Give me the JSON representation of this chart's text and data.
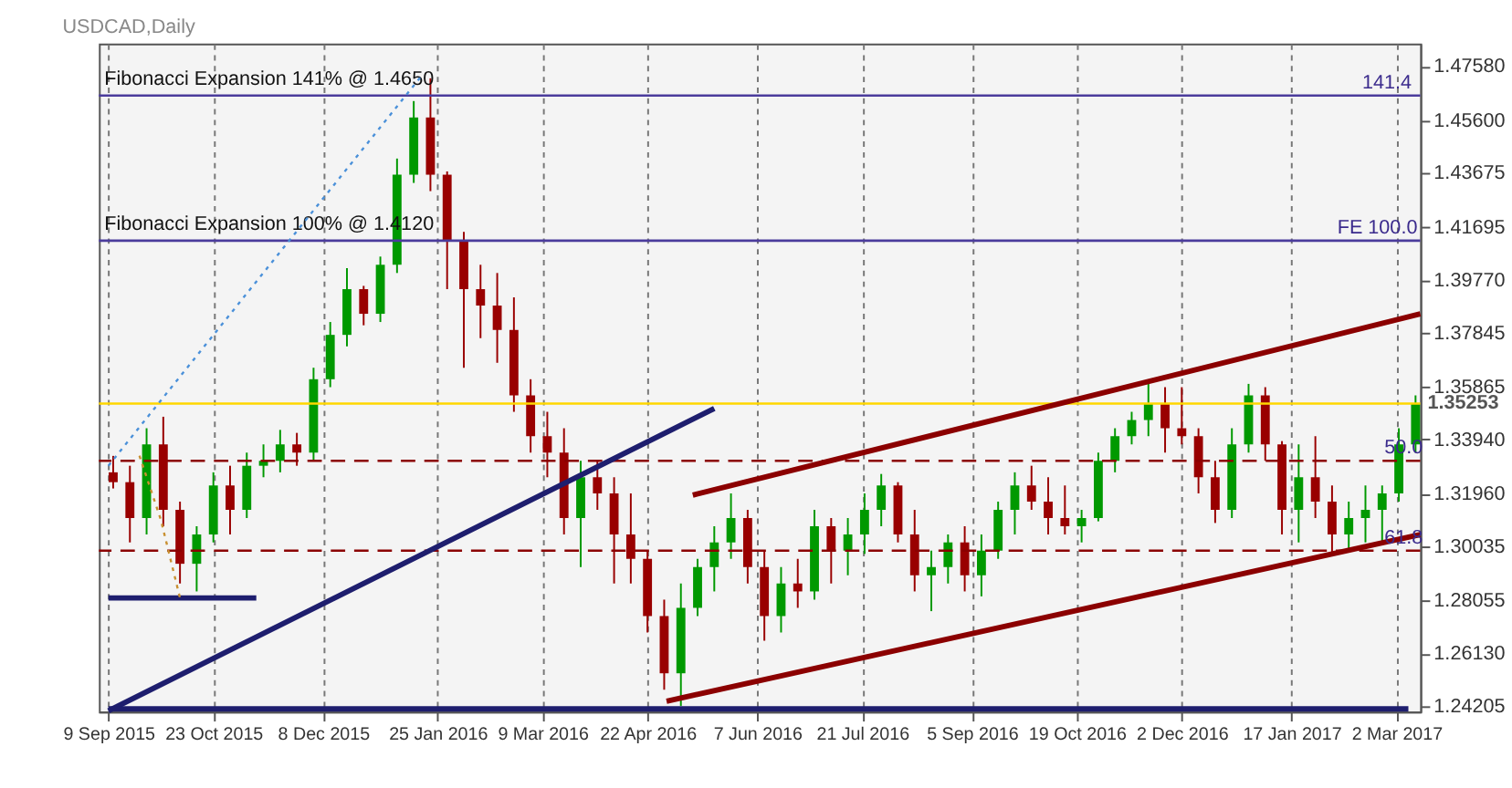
{
  "chart_data": {
    "type": "candlestick",
    "title": "USDCAD,Daily",
    "xlim": [
      "2015-09-05",
      "2017-03-12"
    ],
    "ylim": [
      1.24,
      1.484
    ],
    "xticks": [
      {
        "value": "2015-09-09",
        "label": "9 Sep 2015"
      },
      {
        "value": "2015-10-23",
        "label": "23 Oct 2015"
      },
      {
        "value": "2015-12-08",
        "label": "8 Dec 2015"
      },
      {
        "value": "2016-01-25",
        "label": "25 Jan 2016"
      },
      {
        "value": "2016-03-09",
        "label": "9 Mar 2016"
      },
      {
        "value": "2016-04-22",
        "label": "22 Apr 2016"
      },
      {
        "value": "2016-06-07",
        "label": "7 Jun 2016"
      },
      {
        "value": "2016-07-21",
        "label": "21 Jul 2016"
      },
      {
        "value": "2016-09-05",
        "label": "5 Sep 2016"
      },
      {
        "value": "2016-10-19",
        "label": "19 Oct 2016"
      },
      {
        "value": "2016-12-02",
        "label": "2 Dec 2016"
      },
      {
        "value": "2017-01-17",
        "label": "17 Jan 2017"
      },
      {
        "value": "2017-03-02",
        "label": "2 Mar 2017"
      }
    ],
    "yticks": [
      {
        "value": 1.4758,
        "label": "1.47580"
      },
      {
        "value": 1.456,
        "label": "1.45600"
      },
      {
        "value": 1.43675,
        "label": "1.43675"
      },
      {
        "value": 1.41695,
        "label": "1.41695"
      },
      {
        "value": 1.3977,
        "label": "1.39770"
      },
      {
        "value": 1.37845,
        "label": "1.37845"
      },
      {
        "value": 1.35865,
        "label": "1.35865"
      },
      {
        "value": 1.3394,
        "label": "1.33940"
      },
      {
        "value": 1.3196,
        "label": "1.31960"
      },
      {
        "value": 1.30035,
        "label": "1.30035"
      },
      {
        "value": 1.28055,
        "label": "1.28055"
      },
      {
        "value": 1.2613,
        "label": "1.26130"
      },
      {
        "value": 1.24205,
        "label": "1.24205"
      }
    ],
    "grid": "x",
    "x": [
      "2015-09-11",
      "2015-09-18",
      "2015-09-25",
      "2015-10-02",
      "2015-10-09",
      "2015-10-16",
      "2015-10-23",
      "2015-10-30",
      "2015-11-06",
      "2015-11-13",
      "2015-11-20",
      "2015-11-27",
      "2015-12-04",
      "2015-12-11",
      "2015-12-18",
      "2015-12-25",
      "2016-01-01",
      "2016-01-08",
      "2016-01-15",
      "2016-01-22",
      "2016-01-29",
      "2016-02-05",
      "2016-02-12",
      "2016-02-19",
      "2016-02-26",
      "2016-03-04",
      "2016-03-11",
      "2016-03-18",
      "2016-03-25",
      "2016-04-01",
      "2016-04-08",
      "2016-04-15",
      "2016-04-22",
      "2016-04-29",
      "2016-05-06",
      "2016-05-13",
      "2016-05-20",
      "2016-05-27",
      "2016-06-03",
      "2016-06-10",
      "2016-06-17",
      "2016-06-24",
      "2016-07-01",
      "2016-07-08",
      "2016-07-15",
      "2016-07-22",
      "2016-07-29",
      "2016-08-05",
      "2016-08-12",
      "2016-08-19",
      "2016-08-26",
      "2016-09-02",
      "2016-09-09",
      "2016-09-16",
      "2016-09-23",
      "2016-09-30",
      "2016-10-07",
      "2016-10-14",
      "2016-10-21",
      "2016-10-28",
      "2016-11-04",
      "2016-11-11",
      "2016-11-18",
      "2016-11-25",
      "2016-12-02",
      "2016-12-09",
      "2016-12-16",
      "2016-12-23",
      "2016-12-30",
      "2017-01-06",
      "2017-01-13",
      "2017-01-20",
      "2017-01-27",
      "2017-02-03",
      "2017-02-10",
      "2017-02-17",
      "2017-02-24",
      "2017-03-03",
      "2017-03-10"
    ],
    "ohlc": [
      [
        1.3274,
        1.3334,
        1.3215,
        1.3238
      ],
      [
        1.3238,
        1.3298,
        1.3018,
        1.3107
      ],
      [
        1.3107,
        1.3435,
        1.3047,
        1.3376
      ],
      [
        1.3376,
        1.3477,
        1.3077,
        1.3137
      ],
      [
        1.3137,
        1.3167,
        1.2868,
        1.294
      ],
      [
        1.294,
        1.3077,
        1.2839,
        1.3047
      ],
      [
        1.3047,
        1.3274,
        1.3018,
        1.3226
      ],
      [
        1.3226,
        1.3298,
        1.3047,
        1.3137
      ],
      [
        1.3137,
        1.3346,
        1.3107,
        1.3298
      ],
      [
        1.3298,
        1.3376,
        1.3256,
        1.3316
      ],
      [
        1.3316,
        1.3429,
        1.3274,
        1.3376
      ],
      [
        1.3376,
        1.3418,
        1.3298,
        1.3346
      ],
      [
        1.3346,
        1.3656,
        1.3316,
        1.3614
      ],
      [
        1.3614,
        1.3823,
        1.3585,
        1.3776
      ],
      [
        1.3776,
        1.402,
        1.3734,
        1.3943
      ],
      [
        1.3943,
        1.3955,
        1.3811,
        1.3853
      ],
      [
        1.3853,
        1.4062,
        1.3823,
        1.4032
      ],
      [
        1.4032,
        1.442,
        1.4002,
        1.4361
      ],
      [
        1.4361,
        1.463,
        1.4331,
        1.457
      ],
      [
        1.457,
        1.4713,
        1.4301,
        1.4361
      ],
      [
        1.4361,
        1.4373,
        1.3943,
        1.4122
      ],
      [
        1.4122,
        1.4152,
        1.3656,
        1.3943
      ],
      [
        1.3943,
        1.4032,
        1.3764,
        1.3883
      ],
      [
        1.3883,
        1.4002,
        1.3674,
        1.3794
      ],
      [
        1.3794,
        1.3913,
        1.3495,
        1.3555
      ],
      [
        1.3555,
        1.3614,
        1.3346,
        1.3406
      ],
      [
        1.3406,
        1.3495,
        1.3256,
        1.3346
      ],
      [
        1.3346,
        1.3435,
        1.3047,
        1.3107
      ],
      [
        1.3107,
        1.3316,
        1.2928,
        1.3256
      ],
      [
        1.3256,
        1.3316,
        1.3137,
        1.3197
      ],
      [
        1.3197,
        1.3256,
        1.2868,
        1.3047
      ],
      [
        1.3047,
        1.3197,
        1.2868,
        1.2958
      ],
      [
        1.2958,
        1.2988,
        1.2689,
        1.2749
      ],
      [
        1.2749,
        1.2809,
        1.248,
        1.254
      ],
      [
        1.254,
        1.2868,
        1.2421,
        1.2779
      ],
      [
        1.2779,
        1.2958,
        1.2749,
        1.2928
      ],
      [
        1.2928,
        1.3077,
        1.2839,
        1.3018
      ],
      [
        1.3018,
        1.3197,
        1.2958,
        1.3107
      ],
      [
        1.3107,
        1.3137,
        1.2868,
        1.2928
      ],
      [
        1.2928,
        1.2988,
        1.2659,
        1.2749
      ],
      [
        1.2749,
        1.2928,
        1.2689,
        1.2868
      ],
      [
        1.2868,
        1.2958,
        1.2779,
        1.2839
      ],
      [
        1.2839,
        1.3137,
        1.2809,
        1.3077
      ],
      [
        1.3077,
        1.3107,
        1.2868,
        1.2988
      ],
      [
        1.2988,
        1.3107,
        1.2898,
        1.3047
      ],
      [
        1.3047,
        1.3197,
        1.2976,
        1.3137
      ],
      [
        1.3137,
        1.3268,
        1.3077,
        1.3226
      ],
      [
        1.3226,
        1.3238,
        1.3018,
        1.3047
      ],
      [
        1.3047,
        1.3137,
        1.2839,
        1.2898
      ],
      [
        1.2898,
        1.2988,
        1.2767,
        1.2928
      ],
      [
        1.2928,
        1.3047,
        1.2868,
        1.3018
      ],
      [
        1.3018,
        1.3077,
        1.2839,
        1.2898
      ],
      [
        1.2898,
        1.3047,
        1.2821,
        1.2988
      ],
      [
        1.2988,
        1.3167,
        1.2958,
        1.3137
      ],
      [
        1.3137,
        1.3274,
        1.3047,
        1.3226
      ],
      [
        1.3226,
        1.3298,
        1.3137,
        1.3167
      ],
      [
        1.3167,
        1.3256,
        1.3047,
        1.3107
      ],
      [
        1.3107,
        1.3226,
        1.3047,
        1.3077
      ],
      [
        1.3077,
        1.3137,
        1.3018,
        1.3107
      ],
      [
        1.3107,
        1.3346,
        1.3095,
        1.3316
      ],
      [
        1.3316,
        1.3435,
        1.3274,
        1.3406
      ],
      [
        1.3406,
        1.3495,
        1.3376,
        1.3465
      ],
      [
        1.3465,
        1.3603,
        1.3406,
        1.3525
      ],
      [
        1.3525,
        1.3585,
        1.3346,
        1.3435
      ],
      [
        1.3435,
        1.3585,
        1.3376,
        1.3406
      ],
      [
        1.3406,
        1.3435,
        1.3197,
        1.3256
      ],
      [
        1.3256,
        1.3316,
        1.3089,
        1.3137
      ],
      [
        1.3137,
        1.3435,
        1.3107,
        1.3376
      ],
      [
        1.3376,
        1.3597,
        1.3346,
        1.3555
      ],
      [
        1.3555,
        1.3585,
        1.3316,
        1.3376
      ],
      [
        1.3376,
        1.3388,
        1.3047,
        1.3137
      ],
      [
        1.3137,
        1.3376,
        1.3018,
        1.3256
      ],
      [
        1.3256,
        1.3406,
        1.3107,
        1.3167
      ],
      [
        1.3167,
        1.3226,
        1.2976,
        1.3047
      ],
      [
        1.3047,
        1.3167,
        1.2988,
        1.3107
      ],
      [
        1.3107,
        1.3226,
        1.3018,
        1.3137
      ],
      [
        1.3137,
        1.3226,
        1.3018,
        1.3197
      ],
      [
        1.3197,
        1.3435,
        1.3167,
        1.3376
      ],
      [
        1.3376,
        1.3555,
        1.3346,
        1.3525
      ]
    ],
    "colors": [
      "#990000",
      "#990000",
      "#009900",
      "#990000",
      "#990000",
      "#009900",
      "#009900",
      "#990000",
      "#009900",
      "#009900",
      "#009900",
      "#990000",
      "#009900",
      "#009900",
      "#009900",
      "#990000",
      "#009900",
      "#009900",
      "#009900",
      "#990000",
      "#990000",
      "#990000",
      "#990000",
      "#990000",
      "#990000",
      "#990000",
      "#990000",
      "#990000",
      "#009900",
      "#990000",
      "#990000",
      "#990000",
      "#990000",
      "#990000",
      "#009900",
      "#009900",
      "#009900",
      "#009900",
      "#990000",
      "#990000",
      "#009900",
      "#990000",
      "#009900",
      "#990000",
      "#009900",
      "#009900",
      "#009900",
      "#990000",
      "#990000",
      "#009900",
      "#009900",
      "#990000",
      "#009900",
      "#009900",
      "#009900",
      "#990000",
      "#990000",
      "#990000",
      "#009900",
      "#009900",
      "#009900",
      "#009900",
      "#009900",
      "#990000",
      "#990000",
      "#990000",
      "#990000",
      "#009900",
      "#009900",
      "#990000",
      "#990000",
      "#009900",
      "#990000",
      "#990000",
      "#009900",
      "#009900",
      "#009900",
      "#009900",
      "#009900"
    ],
    "series": [
      {
        "type": "line",
        "color": "#1e1e6e",
        "line_style": "solid",
        "x": [
          "2015-09-09",
          "2016-05-20"
        ],
        "values": [
          1.2403,
          1.3507
        ]
      },
      {
        "type": "line",
        "color": "#1e1e6e",
        "line_style": "solid",
        "x": [
          "2015-09-09",
          "2015-11-10"
        ],
        "values": [
          1.2815,
          1.2815
        ]
      },
      {
        "type": "line",
        "color": "#1e1e6e",
        "line_style": "solid",
        "x": [
          "2015-09-09",
          "2017-03-07"
        ],
        "values": [
          1.241,
          1.241
        ]
      },
      {
        "type": "line",
        "color": "#8b0000",
        "line_style": "solid",
        "x": [
          "2016-05-11",
          "2017-03-12"
        ],
        "values": [
          1.3191,
          1.3853
        ]
      },
      {
        "type": "line",
        "color": "#8b0000",
        "line_style": "solid",
        "x": [
          "2016-04-30",
          "2017-03-12"
        ],
        "values": [
          1.2438,
          1.3047
        ]
      },
      {
        "type": "line",
        "color": "#4a90d9",
        "line_style": "dotted",
        "x": [
          "2015-09-09",
          "2016-01-18"
        ],
        "values": [
          1.3298,
          1.4719
        ]
      },
      {
        "type": "line",
        "color": "#c89030",
        "line_style": "dotted",
        "x": [
          "2015-09-22",
          "2015-10-01",
          "2015-10-09"
        ],
        "values": [
          1.3335,
          1.31,
          1.2815
        ]
      }
    ],
    "ref_lines": [
      {
        "axis": "y",
        "value": 1.465,
        "label": "Fibonacci Expansion 141% @ 1.4650",
        "color": "#4b3c9c"
      },
      {
        "axis": "y",
        "value": 1.412,
        "label": "Fibonacci Expansion 100% @ 1.4120",
        "color": "#4b3c9c"
      },
      {
        "axis": "y",
        "value": 1.35253,
        "color": "#ffd700"
      },
      {
        "axis": "y",
        "value": 1.3316,
        "color": "#8b0000",
        "line_style": "dashed"
      },
      {
        "axis": "y",
        "value": 1.2988,
        "color": "#8b0000",
        "line_style": "dashed"
      }
    ],
    "annotations": [
      {
        "text": "141.4",
        "x": "2017-02-26",
        "y": 1.465
      },
      {
        "text": "FE 100.0",
        "x": "2017-02-22",
        "y": 1.412
      },
      {
        "text": "50.0",
        "x": "2017-03-05",
        "y": 1.3316
      },
      {
        "text": "61.8",
        "x": "2017-03-05",
        "y": 1.2988
      },
      {
        "text": "1.35253",
        "x": "2017-03-12",
        "y": 1.35253
      }
    ]
  }
}
